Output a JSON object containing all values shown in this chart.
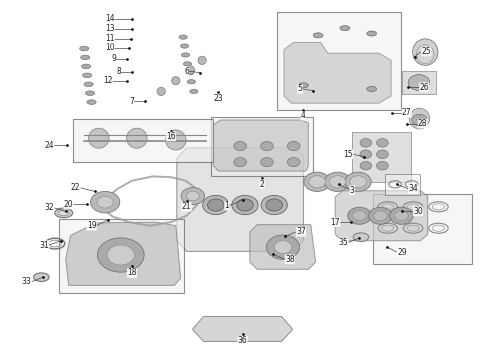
{
  "bg_color": "#ffffff",
  "fig_width": 4.9,
  "fig_height": 3.6,
  "dpi": 100,
  "box_color": "#333333",
  "number_color": "#222222",
  "number_fontsize": 5.5
}
